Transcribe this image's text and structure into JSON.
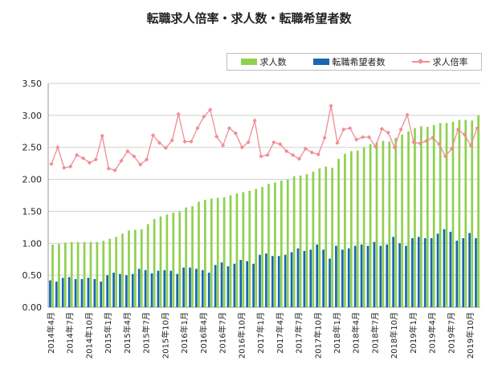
{
  "chart_data": {
    "type": "bar",
    "title": "転職求人倍率・求人数・転職希望者数",
    "ylim": [
      0,
      3.5
    ],
    "yticks": [
      "0.00",
      "0.50",
      "1.00",
      "1.50",
      "2.00",
      "2.50",
      "3.00",
      "3.50"
    ],
    "grid": true,
    "legend_position": "top-right",
    "categories": [
      "2014年4月",
      "2014年5月",
      "2014年6月",
      "2014年7月",
      "2014年8月",
      "2014年9月",
      "2014年10月",
      "2014年11月",
      "2014年12月",
      "2015年1月",
      "2015年2月",
      "2015年3月",
      "2015年4月",
      "2015年5月",
      "2015年6月",
      "2015年7月",
      "2015年8月",
      "2015年9月",
      "2015年10月",
      "2015年11月",
      "2015年12月",
      "2016年1月",
      "2016年2月",
      "2016年3月",
      "2016年4月",
      "2016年5月",
      "2016年6月",
      "2016年7月",
      "2016年8月",
      "2016年9月",
      "2016年10月",
      "2016年11月",
      "2016年12月",
      "2017年1月",
      "2017年2月",
      "2017年3月",
      "2017年4月",
      "2017年5月",
      "2017年6月",
      "2017年7月",
      "2017年8月",
      "2017年9月",
      "2017年10月",
      "2017年11月",
      "2017年12月",
      "2018年1月",
      "2018年2月",
      "2018年3月",
      "2018年4月",
      "2018年5月",
      "2018年6月",
      "2018年7月",
      "2018年8月",
      "2018年9月",
      "2018年10月",
      "2018年11月",
      "2018年12月",
      "2019年1月",
      "2019年2月",
      "2019年3月",
      "2019年4月",
      "2019年5月",
      "2019年6月",
      "2019年7月",
      "2019年8月",
      "2019年9月",
      "2019年10月",
      "2019年11月"
    ],
    "xtick_labels": [
      "2014年4月",
      "2014年7月",
      "2014年10月",
      "2015年1月",
      "2015年4月",
      "2015年7月",
      "2015年10月",
      "2016年1月",
      "2016年4月",
      "2016年7月",
      "2016年10月",
      "2017年1月",
      "2017年4月",
      "2017年7月",
      "2017年10月",
      "2018年1月",
      "2018年4月",
      "2018年7月",
      "2018年10月",
      "2019年1月",
      "2019年4月",
      "2019年7月",
      "2019年10月"
    ],
    "series": [
      {
        "name": "求人数",
        "type": "bar",
        "color": "#8fd14f",
        "values": [
          0.98,
          0.99,
          1.01,
          1.02,
          1.02,
          1.02,
          1.02,
          1.02,
          1.04,
          1.07,
          1.1,
          1.15,
          1.2,
          1.21,
          1.22,
          1.3,
          1.38,
          1.42,
          1.45,
          1.48,
          1.5,
          1.56,
          1.58,
          1.65,
          1.68,
          1.7,
          1.71,
          1.72,
          1.75,
          1.78,
          1.8,
          1.82,
          1.85,
          1.88,
          1.93,
          1.95,
          1.98,
          2.0,
          2.05,
          2.06,
          2.08,
          2.12,
          2.17,
          2.2,
          2.18,
          2.32,
          2.4,
          2.44,
          2.45,
          2.5,
          2.55,
          2.58,
          2.6,
          2.59,
          2.65,
          2.7,
          2.75,
          2.8,
          2.83,
          2.82,
          2.85,
          2.88,
          2.88,
          2.9,
          2.93,
          2.93,
          2.92,
          3.0
        ]
      },
      {
        "name": "転職希望者数",
        "type": "bar",
        "color": "#1a66b3",
        "values": [
          0.42,
          0.4,
          0.46,
          0.47,
          0.44,
          0.44,
          0.46,
          0.44,
          0.4,
          0.5,
          0.54,
          0.52,
          0.5,
          0.52,
          0.6,
          0.58,
          0.53,
          0.57,
          0.58,
          0.57,
          0.52,
          0.62,
          0.62,
          0.6,
          0.58,
          0.54,
          0.66,
          0.7,
          0.64,
          0.68,
          0.74,
          0.72,
          0.68,
          0.82,
          0.84,
          0.8,
          0.8,
          0.82,
          0.86,
          0.92,
          0.88,
          0.9,
          0.98,
          0.9,
          0.76,
          0.96,
          0.9,
          0.92,
          0.96,
          0.98,
          0.96,
          1.02,
          0.96,
          0.98,
          1.1,
          1.0,
          0.96,
          1.08,
          1.1,
          1.08,
          1.08,
          1.15,
          1.22,
          1.18,
          1.04,
          1.08,
          1.16,
          1.08
        ]
      },
      {
        "name": "求人倍率",
        "type": "line",
        "color": "#f28b94",
        "marker": "diamond",
        "values": [
          2.24,
          2.5,
          2.18,
          2.2,
          2.38,
          2.33,
          2.26,
          2.31,
          2.68,
          2.17,
          2.14,
          2.29,
          2.44,
          2.36,
          2.23,
          2.31,
          2.69,
          2.57,
          2.49,
          2.61,
          3.02,
          2.59,
          2.59,
          2.8,
          2.98,
          3.09,
          2.67,
          2.53,
          2.8,
          2.72,
          2.5,
          2.58,
          2.92,
          2.36,
          2.38,
          2.58,
          2.55,
          2.44,
          2.38,
          2.32,
          2.48,
          2.42,
          2.39,
          2.65,
          3.15,
          2.57,
          2.78,
          2.8,
          2.62,
          2.66,
          2.66,
          2.51,
          2.79,
          2.73,
          2.5,
          2.78,
          3.01,
          2.58,
          2.56,
          2.6,
          2.65,
          2.55,
          2.36,
          2.48,
          2.78,
          2.7,
          2.53,
          2.8
        ]
      }
    ]
  }
}
